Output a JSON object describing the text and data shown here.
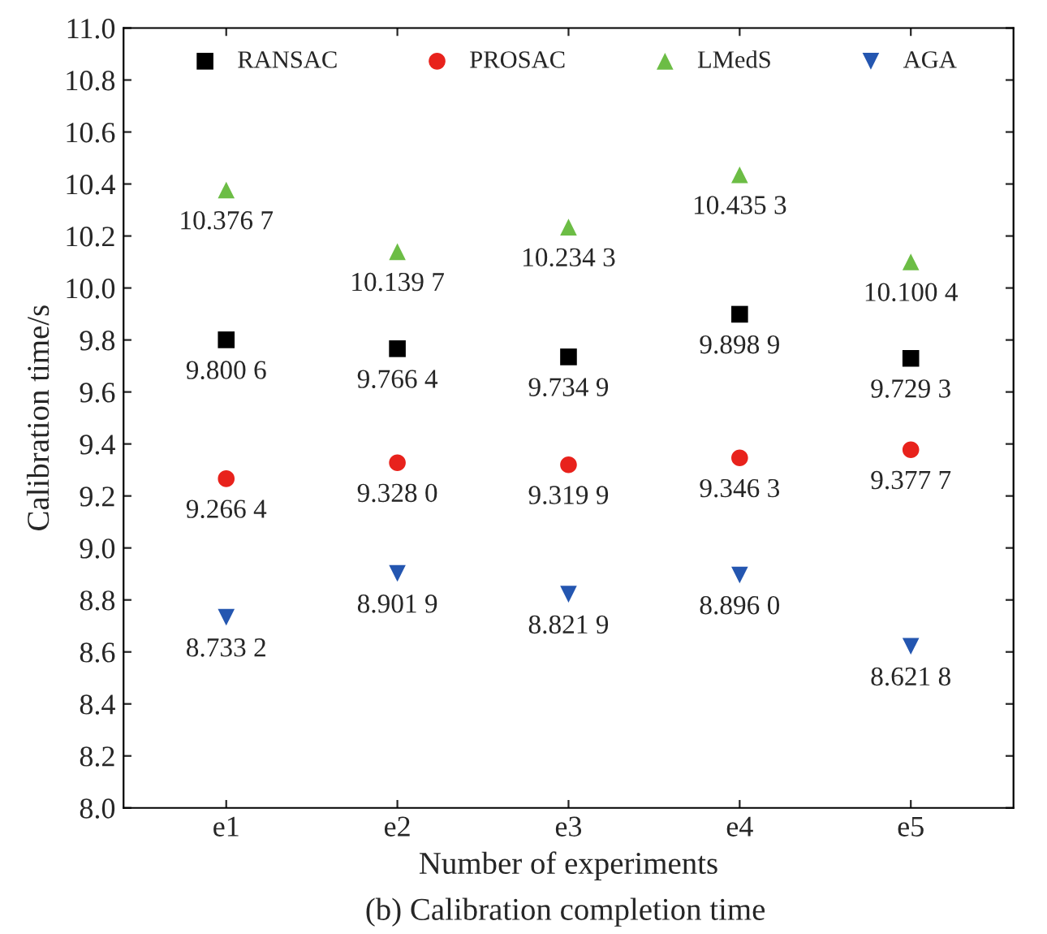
{
  "chart_data": {
    "type": "scatter",
    "xlabel": "Number of experiments",
    "ylabel": "Calibration time/s",
    "categories": [
      "e1",
      "e2",
      "e3",
      "e4",
      "e5"
    ],
    "ylim": [
      8.0,
      11.0
    ],
    "yticks": [
      {
        "value": 8,
        "label": "8.0"
      },
      8.2,
      8.4,
      8.6,
      8.8,
      {
        "value": 9,
        "label": "9.0"
      },
      9.2,
      9.4,
      9.6,
      9.8,
      {
        "value": 10,
        "label": "10.0"
      },
      10.2,
      10.4,
      10.6,
      10.8,
      {
        "value": 11,
        "label": "11.0"
      }
    ],
    "grid": false,
    "legend": "top",
    "annotations": [
      "(b) Calibration completion time"
    ],
    "series": [
      {
        "name": "RANSAC",
        "color": "#000000",
        "marker": "square",
        "values": [
          9.8006,
          9.7664,
          9.7349,
          9.8989,
          9.7293
        ],
        "value_labels": [
          "9.800 6",
          "9.766 4",
          "9.734 9",
          "9.898 9",
          "9.729 3"
        ]
      },
      {
        "name": "PROSAC",
        "color": "#e8221c",
        "marker": "circle",
        "values": [
          9.2664,
          9.328,
          9.3199,
          9.3463,
          9.3777
        ],
        "value_labels": [
          "9.266 4",
          "9.328 0",
          "9.319 9",
          "9.346 3",
          "9.377 7"
        ]
      },
      {
        "name": "LMedS",
        "color": "#6cbd45",
        "marker": "triangle",
        "values": [
          10.3767,
          10.1397,
          10.2343,
          10.4353,
          10.1004
        ],
        "value_labels": [
          "10.376 7",
          "10.139 7",
          "10.234 3",
          "10.435 3",
          "10.100 4"
        ]
      },
      {
        "name": "AGA",
        "color": "#2456b0",
        "marker": "triangle_down",
        "values": [
          8.7332,
          8.9019,
          8.8219,
          8.896,
          8.6218
        ],
        "value_labels": [
          "8.733 2",
          "8.901 9",
          "8.821 9",
          "8.896 0",
          "8.621 8"
        ]
      }
    ]
  }
}
